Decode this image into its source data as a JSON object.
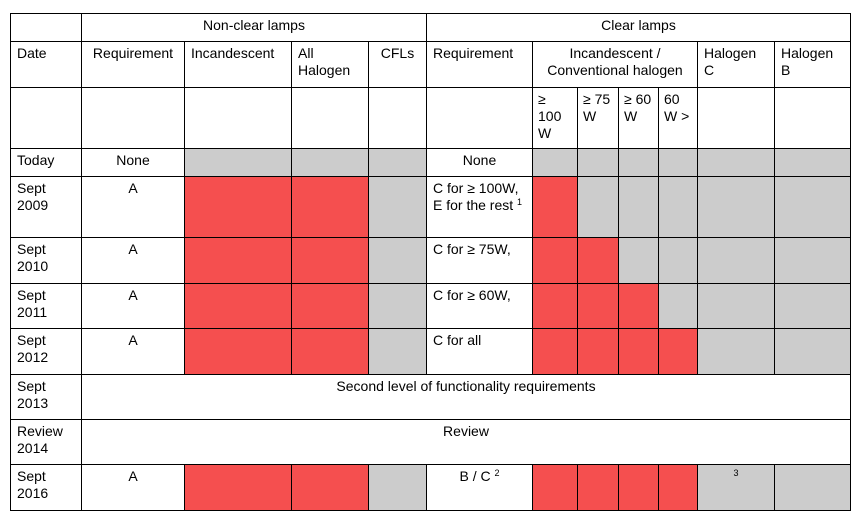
{
  "header": {
    "non_clear": "Non-clear lamps",
    "clear": "Clear lamps"
  },
  "columns": {
    "date": "Date",
    "requirement": "Requirement",
    "incandescent": "Incandescent",
    "all_halogen": "All Halogen",
    "cfls": "CFLs",
    "clear_requirement": "Requirement",
    "inc_conv_halogen": "Incandescent / Conventional halogen",
    "halogen_c": "Halogen C",
    "halogen_b": "Halogen B",
    "watt_100": "≥ 100 W",
    "watt_75": "≥ 75 W",
    "watt_60": "≥ 60 W",
    "watt_60_less": "60 W >"
  },
  "rows": [
    {
      "date": "Today",
      "req": "None",
      "clear_req": "None"
    },
    {
      "date": "Sept 2009",
      "req": "A",
      "clear_req": "C for ≥ 100W, E for the rest",
      "note": "1"
    },
    {
      "date": "Sept 2010",
      "req": "A",
      "clear_req": "C for ≥ 75W,"
    },
    {
      "date": "Sept 2011",
      "req": "A",
      "clear_req": "C for ≥ 60W,"
    },
    {
      "date": "Sept 2012",
      "req": "A",
      "clear_req": "C for all"
    },
    {
      "date": "Sept 2013",
      "span_text": "Second level of functionality requirements"
    },
    {
      "date": "Review 2014",
      "span_text": "Review"
    },
    {
      "date": "Sept 2016",
      "req": "A",
      "clear_req": "B / C",
      "note": "2",
      "halogen_c_note": "3"
    }
  ],
  "colors": {
    "banned": "#f54f4f",
    "allowed": "#cccccc"
  }
}
